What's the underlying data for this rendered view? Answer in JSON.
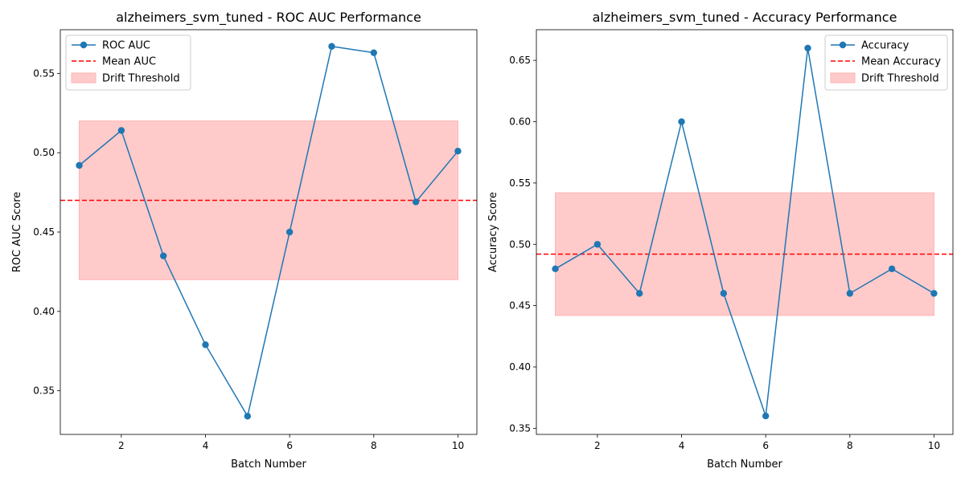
{
  "chart_data": [
    {
      "type": "line",
      "title": "alzheimers_svm_tuned - ROC AUC Performance",
      "xlabel": "Batch Number",
      "ylabel": "ROC AUC Score",
      "xlim": [
        0.55,
        10.45
      ],
      "ylim": [
        0.3225,
        0.5775
      ],
      "xticks": [
        2,
        4,
        6,
        8,
        10
      ],
      "yticks": [
        0.35,
        0.4,
        0.45,
        0.5,
        0.55
      ],
      "ytick_labels": [
        "0.35",
        "0.40",
        "0.45",
        "0.50",
        "0.55"
      ],
      "xtick_labels": [
        "2",
        "4",
        "6",
        "8",
        "10"
      ],
      "grid": false,
      "legend_position": "top-left",
      "series": [
        {
          "name": "ROC AUC",
          "color": "#1f77b4",
          "x": [
            1,
            2,
            3,
            4,
            5,
            6,
            7,
            8,
            9,
            10
          ],
          "values": [
            0.492,
            0.514,
            0.435,
            0.379,
            0.334,
            0.45,
            0.567,
            0.563,
            0.469,
            0.501
          ]
        }
      ],
      "mean_line": {
        "name": "Mean AUC",
        "value": 0.47,
        "color": "#ff0000"
      },
      "threshold_band": {
        "name": "Drift Threshold",
        "x_range": [
          1,
          10
        ],
        "y_range": [
          0.42,
          0.52
        ],
        "color": "#ffb3b3"
      }
    },
    {
      "type": "line",
      "title": "alzheimers_svm_tuned - Accuracy Performance",
      "xlabel": "Batch Number",
      "ylabel": "Accuracy Score",
      "xlim": [
        0.55,
        10.45
      ],
      "ylim": [
        0.345,
        0.675
      ],
      "xticks": [
        2,
        4,
        6,
        8,
        10
      ],
      "yticks": [
        0.35,
        0.4,
        0.45,
        0.5,
        0.55,
        0.6,
        0.65
      ],
      "ytick_labels": [
        "0.35",
        "0.40",
        "0.45",
        "0.50",
        "0.55",
        "0.60",
        "0.65"
      ],
      "xtick_labels": [
        "2",
        "4",
        "6",
        "8",
        "10"
      ],
      "grid": false,
      "legend_position": "top-right",
      "series": [
        {
          "name": "Accuracy",
          "color": "#1f77b4",
          "x": [
            1,
            2,
            3,
            4,
            5,
            6,
            7,
            8,
            9,
            10
          ],
          "values": [
            0.48,
            0.5,
            0.46,
            0.6,
            0.46,
            0.36,
            0.66,
            0.46,
            0.48,
            0.46
          ]
        }
      ],
      "mean_line": {
        "name": "Mean Accuracy",
        "value": 0.492,
        "color": "#ff0000"
      },
      "threshold_band": {
        "name": "Drift Threshold",
        "x_range": [
          1,
          10
        ],
        "y_range": [
          0.442,
          0.542
        ],
        "color": "#ffb3b3"
      }
    }
  ]
}
